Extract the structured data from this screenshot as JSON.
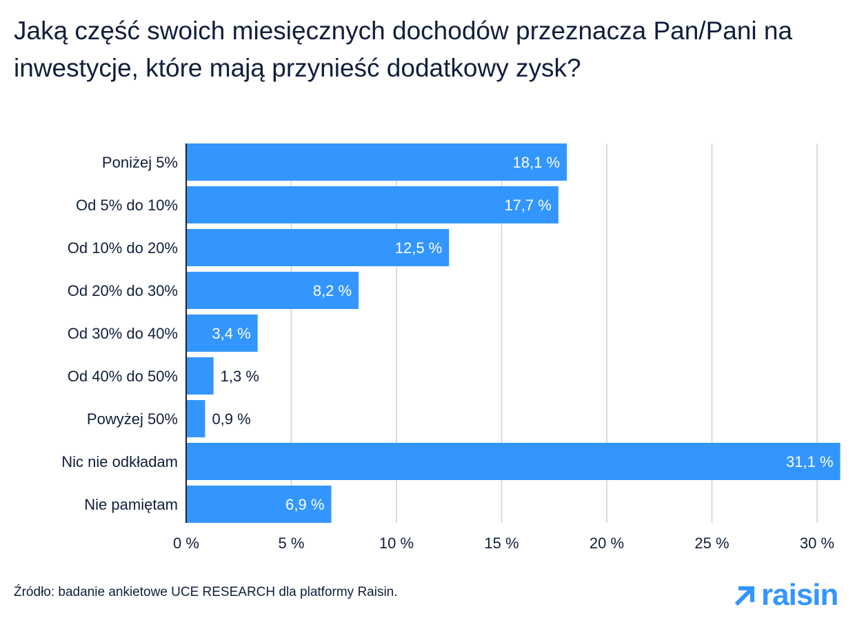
{
  "chart_data": {
    "type": "bar",
    "orientation": "horizontal",
    "title": "Jaką część swoich miesięcznych dochodów przeznacza Pan/Pani na inwestycje, które mają przynieść dodatkowy zysk?",
    "categories": [
      "Poniżej 5%",
      "Od 5% do 10%",
      "Od 10% do 20%",
      "Od 20% do 30%",
      "Od 30% do 40%",
      "Od 40% do 50%",
      "Powyżej 50%",
      "Nic nie odkładam",
      "Nie pamiętam"
    ],
    "values": [
      18.1,
      17.7,
      12.5,
      8.2,
      3.4,
      1.3,
      0.9,
      31.1,
      6.9
    ],
    "data_labels": [
      "18,1 %",
      "17,7 %",
      "12,5 %",
      "8,2 %",
      "3,4 %",
      "1,3 %",
      "0,9 %",
      "31,1 %",
      "6,9 %"
    ],
    "xlim": [
      0,
      31.2
    ],
    "xticks": [
      0,
      5,
      10,
      15,
      20,
      25,
      30
    ],
    "xtick_labels": [
      "0 %",
      "5 %",
      "10 %",
      "15 %",
      "20 %",
      "25 %",
      "30 %"
    ],
    "grid": "vertical",
    "colors": {
      "bar": "#3396ff",
      "text": "#0f1e3c",
      "grid": "#d0d0d8"
    }
  },
  "footer": {
    "source": "Źródło: badanie ankietowe UCE RESEARCH dla platformy Raisin.",
    "logo": "raisin"
  }
}
